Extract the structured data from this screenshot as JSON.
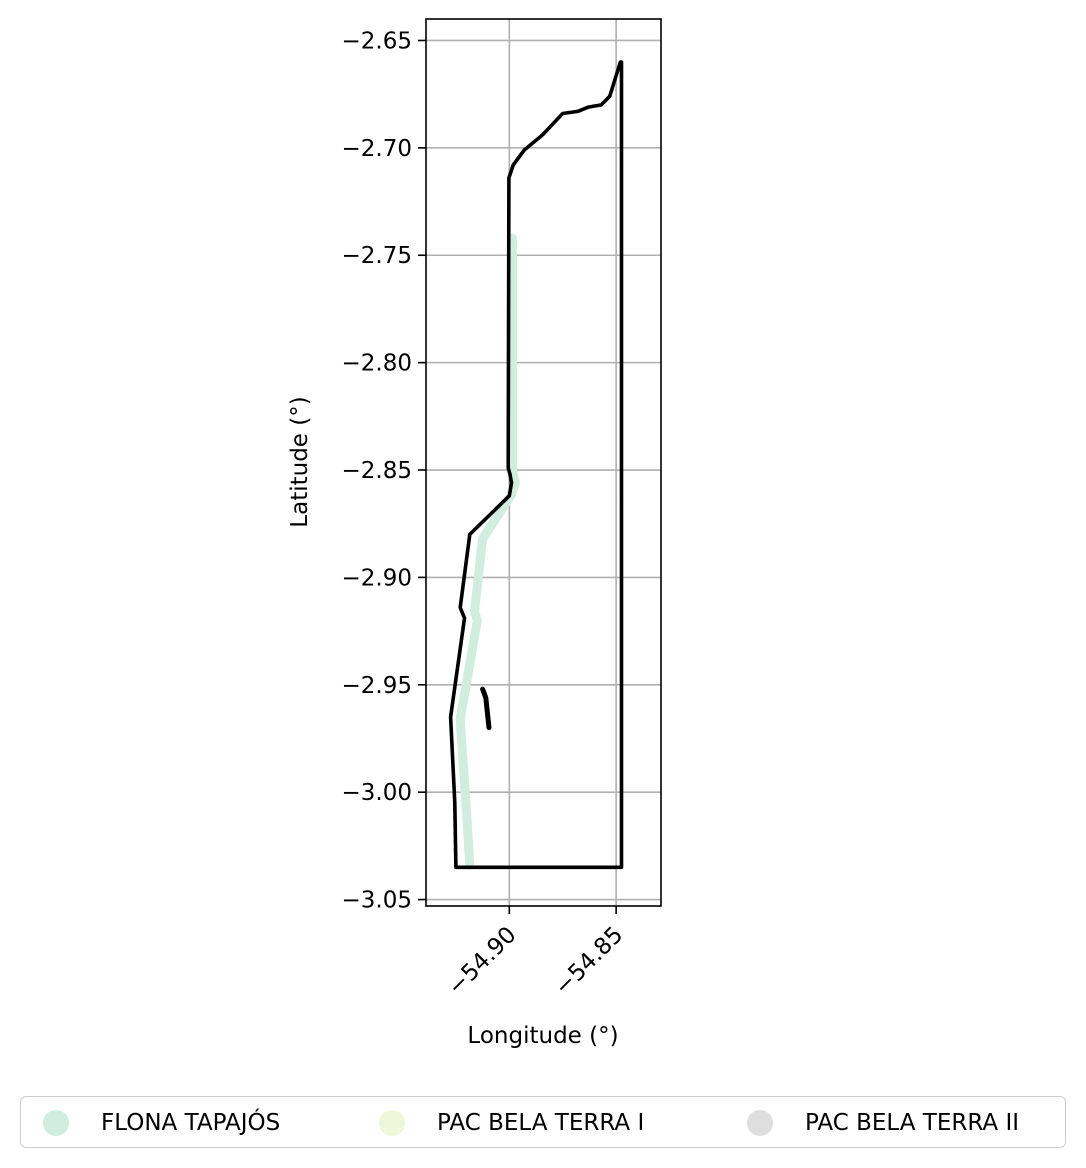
{
  "chart_data": {
    "type": "map",
    "xlabel": "Longitude (°)",
    "ylabel": "Latitude (°)",
    "xlim": [
      -54.939,
      -54.829
    ],
    "ylim": [
      -3.053,
      -2.64
    ],
    "x_ticks": [
      -54.9,
      -54.85
    ],
    "x_tick_labels": [
      "−54.90",
      "−54.85"
    ],
    "y_ticks": [
      -2.65,
      -2.7,
      -2.75,
      -2.8,
      -2.85,
      -2.9,
      -2.95,
      -3.0,
      -3.05
    ],
    "y_tick_labels": [
      "−2.65",
      "−2.70",
      "−2.75",
      "−2.80",
      "−2.85",
      "−2.90",
      "−2.95",
      "−3.00",
      "−3.05"
    ],
    "grid": true,
    "legend_position": "bottom",
    "series": [
      {
        "name": "FLONA TAPAJÓS",
        "color": "#d0ede0",
        "outline": [
          [
            -54.8985,
            -2.742
          ],
          [
            -54.8985,
            -2.85
          ],
          [
            -54.8972,
            -2.856
          ],
          [
            -54.8993,
            -2.862
          ],
          [
            -54.9125,
            -2.882
          ],
          [
            -54.9163,
            -2.916
          ],
          [
            -54.915,
            -2.92
          ],
          [
            -54.923,
            -2.966
          ],
          [
            -54.92,
            -3.01
          ],
          [
            -54.9185,
            -3.034
          ]
        ]
      },
      {
        "name": "PAC BELA TERRA I",
        "color": "#eef7d9",
        "outline": []
      },
      {
        "name": "PAC BELA TERRA II",
        "color": "#dedede",
        "outline": [
          [
            -54.8815,
            -2.683
          ],
          [
            -54.8775,
            -2.682
          ],
          [
            -54.863,
            -2.681
          ],
          [
            -54.857,
            -2.68
          ],
          [
            -54.8545,
            -2.677
          ],
          [
            -54.848,
            -2.66
          ],
          [
            -54.8475,
            -2.66
          ],
          [
            -54.8475,
            -3.035
          ],
          [
            -54.918,
            -3.035
          ],
          [
            -54.9215,
            -3.005
          ],
          [
            -54.924,
            -2.965
          ],
          [
            -54.917,
            -2.915
          ],
          [
            -54.9155,
            -2.918
          ],
          [
            -54.9135,
            -2.902
          ],
          [
            -54.9195,
            -2.88
          ],
          [
            -54.9,
            -2.862
          ],
          [
            -54.8997,
            -2.852
          ],
          [
            -54.9005,
            -2.849
          ],
          [
            -54.9002,
            -2.714
          ],
          [
            -54.8982,
            -2.708
          ]
        ]
      }
    ],
    "outline": [
      [
        -54.8475,
        -2.66
      ],
      [
        -54.848,
        -2.66
      ],
      [
        -54.853,
        -2.676
      ],
      [
        -54.857,
        -2.68
      ],
      [
        -54.863,
        -2.681
      ],
      [
        -54.868,
        -2.683
      ],
      [
        -54.875,
        -2.684
      ],
      [
        -54.8845,
        -2.694
      ],
      [
        -54.893,
        -2.701
      ],
      [
        -54.8982,
        -2.708
      ],
      [
        -54.9002,
        -2.714
      ],
      [
        -54.9005,
        -2.849
      ],
      [
        -54.8997,
        -2.852
      ],
      [
        -54.899,
        -2.856
      ],
      [
        -54.9,
        -2.862
      ],
      [
        -54.9185,
        -2.88
      ],
      [
        -54.923,
        -2.914
      ],
      [
        -54.921,
        -2.919
      ],
      [
        -54.9275,
        -2.965
      ],
      [
        -54.9255,
        -3.005
      ],
      [
        -54.925,
        -3.035
      ],
      [
        -54.8475,
        -3.035
      ],
      [
        -54.8475,
        -2.66
      ]
    ],
    "inner_segment": [
      [
        -54.9125,
        -2.952
      ],
      [
        -54.911,
        -2.956
      ],
      [
        -54.9095,
        -2.97
      ]
    ]
  }
}
